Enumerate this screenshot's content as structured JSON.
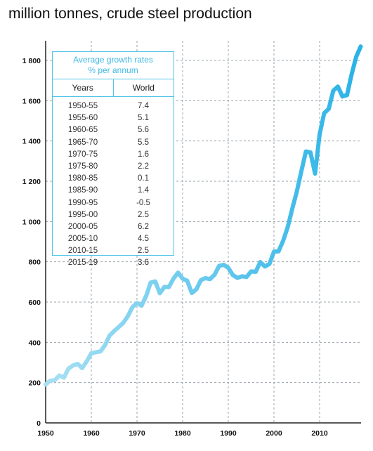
{
  "title": "million tonnes, crude steel production",
  "colors": {
    "line_start": "#a8e0f4",
    "line_end": "#29b3e6",
    "grid": "#9aa4ad",
    "box_border": "#4fc3e8",
    "box_title": "#3fb8e6"
  },
  "growth_table": {
    "title_line1": "Average growth rates",
    "title_line2": "% per annum",
    "col_years": "Years",
    "col_world": "World",
    "rows": [
      {
        "years": "1950-55",
        "world": "7.4"
      },
      {
        "years": "1955-60",
        "world": "5.1"
      },
      {
        "years": "1960-65",
        "world": "5.6"
      },
      {
        "years": "1965-70",
        "world": "5.5"
      },
      {
        "years": "1970-75",
        "world": "1.6"
      },
      {
        "years": "1975-80",
        "world": "2.2"
      },
      {
        "years": "1980-85",
        "world": "0.1"
      },
      {
        "years": "1985-90",
        "world": "1.4"
      },
      {
        "years": "1990-95",
        "world": "-0.5"
      },
      {
        "years": "1995-00",
        "world": "2.5"
      },
      {
        "years": "2000-05",
        "world": "6.2"
      },
      {
        "years": "2005-10",
        "world": "4.5"
      },
      {
        "years": "2010-15",
        "world": "2.5"
      },
      {
        "years": "2015-19",
        "world": "3.6"
      }
    ]
  },
  "chart_data": {
    "type": "line",
    "title": "million tonnes, crude steel production",
    "xlabel": "",
    "ylabel": "",
    "xlim": [
      1950,
      2019
    ],
    "ylim": [
      0,
      1900
    ],
    "x_ticks": [
      1950,
      1960,
      1970,
      1980,
      1990,
      2000,
      2010
    ],
    "y_ticks": [
      0,
      200,
      400,
      600,
      800,
      1000,
      1200,
      1400,
      1600,
      1800
    ],
    "y_tick_labels": [
      "0",
      "200",
      "400",
      "600",
      "800",
      "1 000",
      "1 200",
      "1 400",
      "1 600",
      "1 800"
    ],
    "grid": true,
    "series": [
      {
        "x": [
          1950,
          1951,
          1952,
          1953,
          1954,
          1955,
          1956,
          1957,
          1958,
          1959,
          1960,
          1961,
          1962,
          1963,
          1964,
          1965,
          1966,
          1967,
          1968,
          1969,
          1970,
          1971,
          1972,
          1973,
          1974,
          1975,
          1976,
          1977,
          1978,
          1979,
          1980,
          1981,
          1982,
          1983,
          1984,
          1985,
          1986,
          1987,
          1988,
          1989,
          1990,
          1991,
          1992,
          1993,
          1994,
          1995,
          1996,
          1997,
          1998,
          1999,
          2000,
          2001,
          2002,
          2003,
          2004,
          2005,
          2006,
          2007,
          2008,
          2009,
          2010,
          2011,
          2012,
          2013,
          2014,
          2015,
          2016,
          2017,
          2018,
          2019
        ],
        "y": [
          190,
          210,
          212,
          235,
          225,
          270,
          285,
          293,
          272,
          306,
          346,
          351,
          355,
          386,
          434,
          456,
          476,
          497,
          530,
          575,
          595,
          582,
          630,
          697,
          703,
          644,
          675,
          675,
          717,
          746,
          716,
          706,
          645,
          663,
          709,
          719,
          714,
          736,
          780,
          785,
          770,
          734,
          720,
          728,
          725,
          752,
          750,
          799,
          777,
          789,
          850,
          852,
          904,
          971,
          1063,
          1148,
          1250,
          1348,
          1343,
          1238,
          1433,
          1538,
          1560,
          1650,
          1670,
          1621,
          1628,
          1730,
          1817,
          1869
        ]
      }
    ]
  }
}
